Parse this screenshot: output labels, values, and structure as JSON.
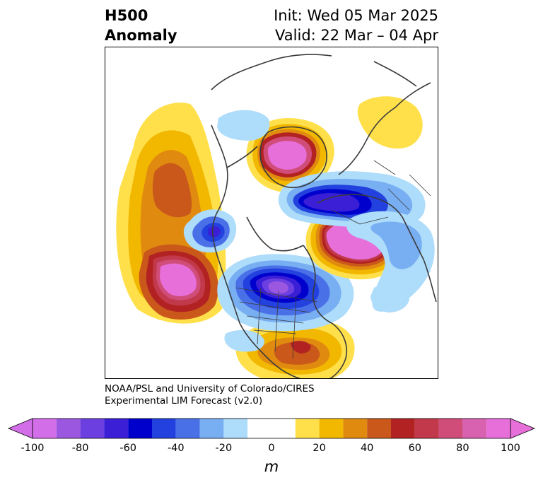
{
  "header": {
    "title_line1": "H500",
    "title_line2": "Anomaly",
    "init_text": "Init: Wed 05 Mar 2025",
    "valid_text": "Valid: 22 Mar – 04 Apr"
  },
  "credit": {
    "line1": "NOAA/PSL and University of Colorado/CIRES",
    "line2": "Experimental LIM Forecast (v2.0)"
  },
  "colorbar": {
    "unit": "m",
    "tick_labels": [
      "-100",
      "-80",
      "-60",
      "-40",
      "-20",
      "0",
      "20",
      "40",
      "60",
      "80",
      "100"
    ],
    "bins": [
      -100,
      -90,
      -80,
      -70,
      -60,
      -50,
      -40,
      -30,
      -20,
      -10,
      10,
      20,
      30,
      40,
      50,
      60,
      70,
      80,
      90,
      100
    ],
    "colors": [
      "#d26ee8",
      "#9b57e0",
      "#6b3fe0",
      "#3a1fd6",
      "#0000cd",
      "#2341de",
      "#4a70e8",
      "#78aef2",
      "#aedcfb",
      "#ffffff",
      "#ffe04b",
      "#f2b800",
      "#e08a10",
      "#c9581a",
      "#b22222",
      "#c1394a",
      "#d04d7a",
      "#d862b0",
      "#e76fd9"
    ],
    "under_color": "#d26ee8",
    "over_color": "#e76fd9"
  },
  "map": {
    "features": [
      {
        "name": "north-pacific-positive-anomaly",
        "sign": "positive",
        "peak_m": 100
      },
      {
        "name": "bering-ridge-positive-anomaly",
        "sign": "positive",
        "peak_m": 40
      },
      {
        "name": "canada-negative-anomaly",
        "sign": "negative",
        "peak_m": -90
      },
      {
        "name": "gulf-positive-anomaly",
        "sign": "positive",
        "peak_m": 50
      },
      {
        "name": "north-atlantic-positive-anomaly",
        "sign": "positive",
        "peak_m": 100
      },
      {
        "name": "greenland-positive-anomaly",
        "sign": "positive",
        "peak_m": 100
      },
      {
        "name": "european-arctic-negative-anomaly",
        "sign": "negative",
        "peak_m": -70
      },
      {
        "name": "siberia-negative-anomaly",
        "sign": "negative",
        "peak_m": -60
      }
    ]
  }
}
